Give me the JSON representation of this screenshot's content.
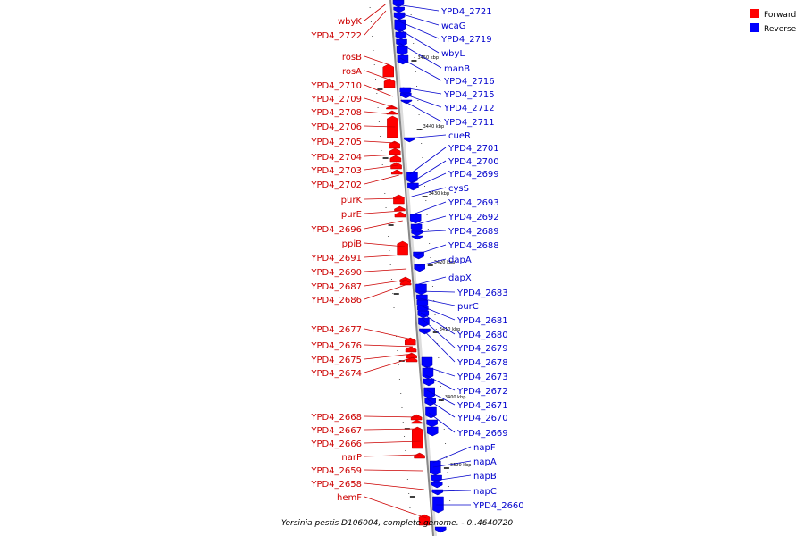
{
  "legend": {
    "forward_label": "Forward",
    "reverse_label": "Reverse",
    "forward_color": "#ff0000",
    "reverse_color": "#0000ff"
  },
  "title": "Yersinia pestis D106004, complete genome. - 0..4640720",
  "scale_ticks": [
    "3450 kbp",
    "3440 kbp",
    "3430 kbp",
    "3420 kbp",
    "3410 kbp",
    "3400 kbp",
    "3390 kbp"
  ],
  "forward_genes": [
    "wbyK",
    "YPD4_2722",
    "rosB",
    "rosA",
    "YPD4_2710",
    "YPD4_2709",
    "YPD4_2708",
    "YPD4_2706",
    "YPD4_2705",
    "YPD4_2704",
    "YPD4_2703",
    "YPD4_2702",
    "purK",
    "purE",
    "YPD4_2696",
    "ppiB",
    "YPD4_2691",
    "YPD4_2690",
    "YPD4_2687",
    "YPD4_2686",
    "YPD4_2677",
    "YPD4_2676",
    "YPD4_2675",
    "YPD4_2674",
    "YPD4_2668",
    "YPD4_2667",
    "YPD4_2666",
    "narP",
    "YPD4_2659",
    "YPD4_2658",
    "hemF"
  ],
  "reverse_genes": [
    "YPD4_2721",
    "wcaG",
    "YPD4_2719",
    "wbyL",
    "manB",
    "YPD4_2716",
    "YPD4_2715",
    "YPD4_2712",
    "YPD4_2711",
    "cueR",
    "YPD4_2701",
    "YPD4_2700",
    "YPD4_2699",
    "cysS",
    "YPD4_2693",
    "YPD4_2692",
    "YPD4_2689",
    "YPD4_2688",
    "dapA",
    "dapX",
    "YPD4_2683",
    "purC",
    "YPD4_2681",
    "YPD4_2680",
    "YPD4_2679",
    "YPD4_2678",
    "YPD4_2673",
    "YPD4_2672",
    "YPD4_2671",
    "YPD4_2670",
    "YPD4_2669",
    "napF",
    "napA",
    "napB",
    "napC",
    "YPD4_2660"
  ],
  "forward_label_color": "#cc0000",
  "reverse_label_color": "#0000cc"
}
